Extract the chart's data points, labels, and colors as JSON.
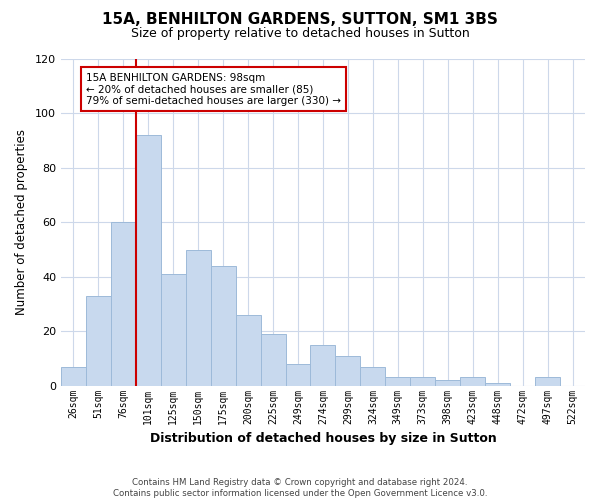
{
  "title": "15A, BENHILTON GARDENS, SUTTON, SM1 3BS",
  "subtitle": "Size of property relative to detached houses in Sutton",
  "xlabel": "Distribution of detached houses by size in Sutton",
  "ylabel": "Number of detached properties",
  "categories": [
    "26sqm",
    "51sqm",
    "76sqm",
    "101sqm",
    "125sqm",
    "150sqm",
    "175sqm",
    "200sqm",
    "225sqm",
    "249sqm",
    "274sqm",
    "299sqm",
    "324sqm",
    "349sqm",
    "373sqm",
    "398sqm",
    "423sqm",
    "448sqm",
    "472sqm",
    "497sqm",
    "522sqm"
  ],
  "values": [
    7,
    33,
    60,
    92,
    41,
    50,
    44,
    26,
    19,
    8,
    15,
    11,
    7,
    3,
    3,
    2,
    3,
    1,
    0,
    3,
    0
  ],
  "bar_color": "#c8d9ee",
  "bar_edge_color": "#9dbad9",
  "vline_index": 3,
  "vline_color": "#cc0000",
  "annotation_line1": "15A BENHILTON GARDENS: 98sqm",
  "annotation_line2": "← 20% of detached houses are smaller (85)",
  "annotation_line3": "79% of semi-detached houses are larger (330) →",
  "annotation_box_facecolor": "#ffffff",
  "annotation_box_edgecolor": "#cc0000",
  "ylim": [
    0,
    120
  ],
  "yticks": [
    0,
    20,
    40,
    60,
    80,
    100,
    120
  ],
  "footer_text": "Contains HM Land Registry data © Crown copyright and database right 2024.\nContains public sector information licensed under the Open Government Licence v3.0.",
  "background_color": "#ffffff",
  "grid_color": "#cdd8ea"
}
